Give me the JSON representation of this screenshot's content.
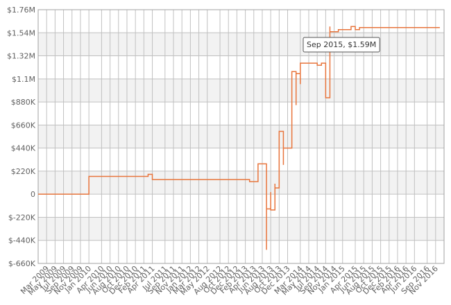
{
  "chart_data": {
    "type": "line",
    "step": true,
    "color": "#e8743b",
    "grid": true,
    "annotation": "Sep 2015, $1.59M",
    "x": [
      "2009-01",
      "2010-01",
      "2011-03",
      "2011-04",
      "2013-03",
      "2013-05",
      "2013-07",
      "2013-07",
      "2013-08",
      "2013-08",
      "2013-09",
      "2013-09",
      "2013-10",
      "2013-10",
      "2013-11",
      "2013-11",
      "2014-01",
      "2014-01",
      "2014-02",
      "2014-02",
      "2014-03",
      "2014-03",
      "2014-07",
      "2014-08",
      "2014-09",
      "2014-10",
      "2014-10",
      "2014-12",
      "2015-03",
      "2015-04",
      "2015-05",
      "2016-12"
    ],
    "series": [
      {
        "color": "#e8743b",
        "values": [
          0,
          170000,
          190000,
          140000,
          120000,
          290000,
          -530000,
          -140000,
          20000,
          -150000,
          100000,
          60000,
          340000,
          600000,
          280000,
          440000,
          720000,
          1170000,
          850000,
          1150000,
          1050000,
          1250000,
          1230000,
          1250000,
          920000,
          1600000,
          1550000,
          1570000,
          1600000,
          1570000,
          1590000,
          1590000
        ]
      }
    ],
    "xlim": [
      "2009-01",
      "2017-01"
    ],
    "xticks": [
      {
        "value": "2009-03",
        "label": "Mar 2009"
      },
      {
        "value": "2009-05",
        "label": "May 2009"
      },
      {
        "value": "2009-07",
        "label": "Jul 2009"
      },
      {
        "value": "2009-09",
        "label": "Sep 2009"
      },
      {
        "value": "2009-11",
        "label": "Nov 2009"
      },
      {
        "value": "2010-01",
        "label": "Jan 2010"
      },
      {
        "value": "2010-04",
        "label": "Apr 2010"
      },
      {
        "value": "2010-06",
        "label": "Jun 2010"
      },
      {
        "value": "2010-08",
        "label": "Aug 2010"
      },
      {
        "value": "2010-10",
        "label": "Oct 2010"
      },
      {
        "value": "2010-12",
        "label": "Dec 2010"
      },
      {
        "value": "2011-02",
        "label": "Feb 2011"
      },
      {
        "value": "2011-04",
        "label": "Apr 2011"
      },
      {
        "value": "2011-07",
        "label": "Jul 2011"
      },
      {
        "value": "2011-09",
        "label": "Sep 2011"
      },
      {
        "value": "2011-11",
        "label": "Nov 2011"
      },
      {
        "value": "2012-01",
        "label": "Jan 2012"
      },
      {
        "value": "2012-03",
        "label": "Mar 2012"
      },
      {
        "value": "2012-05",
        "label": "May 2012"
      },
      {
        "value": "2012-08",
        "label": "Aug 2012"
      },
      {
        "value": "2012-10",
        "label": "Oct 2012"
      },
      {
        "value": "2012-12",
        "label": "Dec 2012"
      },
      {
        "value": "2013-02",
        "label": "Feb 2013"
      },
      {
        "value": "2013-04",
        "label": "Apr 2013"
      },
      {
        "value": "2013-06",
        "label": "Jun 2013"
      },
      {
        "value": "2013-08",
        "label": "Aug 2013"
      },
      {
        "value": "2013-10",
        "label": "Oct 2013"
      },
      {
        "value": "2013-12",
        "label": "Dec 2013"
      },
      {
        "value": "2014-03",
        "label": "Mar 2014"
      },
      {
        "value": "2014-05",
        "label": "May 2014"
      },
      {
        "value": "2014-07",
        "label": "Jul 2014"
      },
      {
        "value": "2014-09",
        "label": "Sep 2014"
      },
      {
        "value": "2014-11",
        "label": "Nov 2014"
      },
      {
        "value": "2015-01",
        "label": "Jan 2015"
      },
      {
        "value": "2015-04",
        "label": "Apr 2015"
      },
      {
        "value": "2015-06",
        "label": "Jun 2015"
      },
      {
        "value": "2015-08",
        "label": "Aug 2015"
      },
      {
        "value": "2015-10",
        "label": "Oct 2015"
      },
      {
        "value": "2015-12",
        "label": "Dec 2015"
      },
      {
        "value": "2016-02",
        "label": "Feb 2016"
      },
      {
        "value": "2016-04",
        "label": "Apr 2016"
      },
      {
        "value": "2016-06",
        "label": "Jun 2016"
      },
      {
        "value": "2016-09",
        "label": "Sep 2016"
      },
      {
        "value": "2016-11",
        "label": "Nov 2016"
      }
    ],
    "ylim": [
      -660000,
      1760000
    ],
    "yticks": [
      {
        "value": -660000,
        "label": "$-660K"
      },
      {
        "value": -440000,
        "label": "$-440K"
      },
      {
        "value": -220000,
        "label": "$-220K"
      },
      0,
      {
        "value": 220000,
        "label": "$220K"
      },
      {
        "value": 440000,
        "label": "$440K"
      },
      {
        "value": 660000,
        "label": "$660K"
      },
      {
        "value": 880000,
        "label": "$880K"
      },
      {
        "value": 1100000,
        "label": "$1.1M"
      },
      {
        "value": 1320000,
        "label": "$1.32M"
      },
      {
        "value": 1540000,
        "label": "$1.54M"
      },
      {
        "value": 1760000,
        "label": "$1.76M"
      }
    ]
  }
}
